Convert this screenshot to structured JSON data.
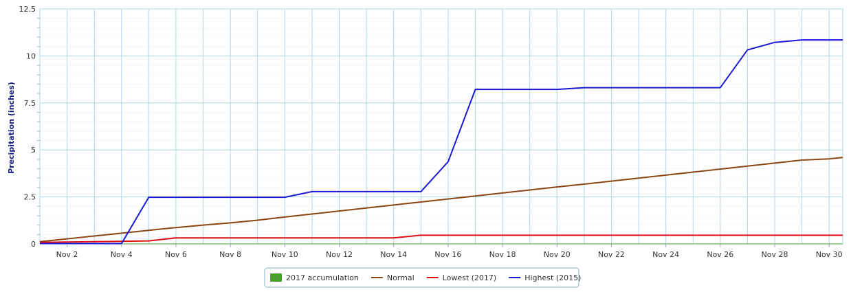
{
  "chart_data": {
    "type": "line",
    "title": "",
    "ylabel": "Precipitation (inches)",
    "xlabel": "",
    "xlim": [
      1,
      30.5
    ],
    "ylim": [
      0,
      12.5
    ],
    "grid": true,
    "legend_position": "bottom-center",
    "x_ticks": [
      {
        "x": 2,
        "label": "Nov 2"
      },
      {
        "x": 4,
        "label": "Nov 4"
      },
      {
        "x": 6,
        "label": "Nov 6"
      },
      {
        "x": 8,
        "label": "Nov 8"
      },
      {
        "x": 10,
        "label": "Nov 10"
      },
      {
        "x": 12,
        "label": "Nov 12"
      },
      {
        "x": 14,
        "label": "Nov 14"
      },
      {
        "x": 16,
        "label": "Nov 16"
      },
      {
        "x": 18,
        "label": "Nov 18"
      },
      {
        "x": 20,
        "label": "Nov 20"
      },
      {
        "x": 22,
        "label": "Nov 22"
      },
      {
        "x": 24,
        "label": "Nov 24"
      },
      {
        "x": 26,
        "label": "Nov 26"
      },
      {
        "x": 28,
        "label": "Nov 28"
      },
      {
        "x": 30,
        "label": "Nov 30"
      }
    ],
    "y_ticks": [
      {
        "y": 0,
        "label": "0"
      },
      {
        "y": 2.5,
        "label": "2.5"
      },
      {
        "y": 5,
        "label": "5"
      },
      {
        "y": 7.5,
        "label": "7.5"
      },
      {
        "y": 10,
        "label": "10"
      },
      {
        "y": 12.5,
        "label": "12.5"
      }
    ],
    "series": [
      {
        "name": "2017 accumulation",
        "kind": "area",
        "color": "#4aa02c",
        "x": [
          1,
          30.5
        ],
        "y": [
          0,
          0
        ]
      },
      {
        "name": "Normal",
        "kind": "line",
        "color": "#8b4513",
        "x": [
          1,
          2,
          3,
          4,
          5,
          6,
          7,
          8,
          9,
          10,
          11,
          12,
          13,
          14,
          15,
          16,
          17,
          18,
          19,
          20,
          21,
          22,
          23,
          24,
          25,
          26,
          27,
          28,
          29,
          30,
          30.5
        ],
        "y": [
          0.12,
          0.27,
          0.42,
          0.57,
          0.72,
          0.87,
          1.0,
          1.12,
          1.26,
          1.43,
          1.59,
          1.75,
          1.91,
          2.07,
          2.23,
          2.39,
          2.55,
          2.71,
          2.87,
          3.03,
          3.18,
          3.34,
          3.5,
          3.66,
          3.82,
          3.98,
          4.14,
          4.3,
          4.46,
          4.52,
          4.6
        ]
      },
      {
        "name": "Lowest (2017)",
        "kind": "line",
        "color": "#dd1111",
        "x": [
          1,
          2,
          3,
          4,
          5,
          6,
          7,
          8,
          9,
          10,
          11,
          12,
          13,
          14,
          15,
          16,
          17,
          18,
          19,
          20,
          21,
          22,
          23,
          24,
          25,
          26,
          27,
          28,
          29,
          30,
          30.5
        ],
        "y": [
          0.08,
          0.1,
          0.12,
          0.14,
          0.16,
          0.32,
          0.32,
          0.32,
          0.32,
          0.32,
          0.32,
          0.32,
          0.32,
          0.32,
          0.46,
          0.46,
          0.46,
          0.46,
          0.46,
          0.46,
          0.46,
          0.46,
          0.46,
          0.46,
          0.46,
          0.46,
          0.46,
          0.46,
          0.46,
          0.46,
          0.46
        ]
      },
      {
        "name": "Highest (2015)",
        "kind": "line",
        "color": "#1a1ad6",
        "x": [
          1,
          2,
          3,
          4,
          5,
          6,
          7,
          8,
          9,
          10,
          11,
          12,
          13,
          14,
          15,
          16,
          17,
          18,
          19,
          20,
          21,
          22,
          23,
          24,
          25,
          26,
          27,
          28,
          29,
          30,
          30.5
        ],
        "y": [
          0.02,
          0.02,
          0.02,
          0.02,
          2.48,
          2.48,
          2.48,
          2.48,
          2.48,
          2.48,
          2.78,
          2.78,
          2.78,
          2.78,
          2.78,
          4.37,
          8.22,
          8.22,
          8.22,
          8.22,
          8.31,
          8.31,
          8.31,
          8.31,
          8.31,
          8.31,
          10.32,
          10.72,
          10.85,
          10.85,
          10.85
        ]
      }
    ]
  },
  "legend": {
    "items": [
      {
        "label": "2017 accumulation",
        "color": "#4aa02c",
        "marker": "box"
      },
      {
        "label": "Normal",
        "color": "#8b4513",
        "marker": "line"
      },
      {
        "label": "Lowest (2017)",
        "color": "#dd1111",
        "marker": "line"
      },
      {
        "label": "Highest (2015)",
        "color": "#1a1ad6",
        "marker": "line"
      }
    ]
  }
}
